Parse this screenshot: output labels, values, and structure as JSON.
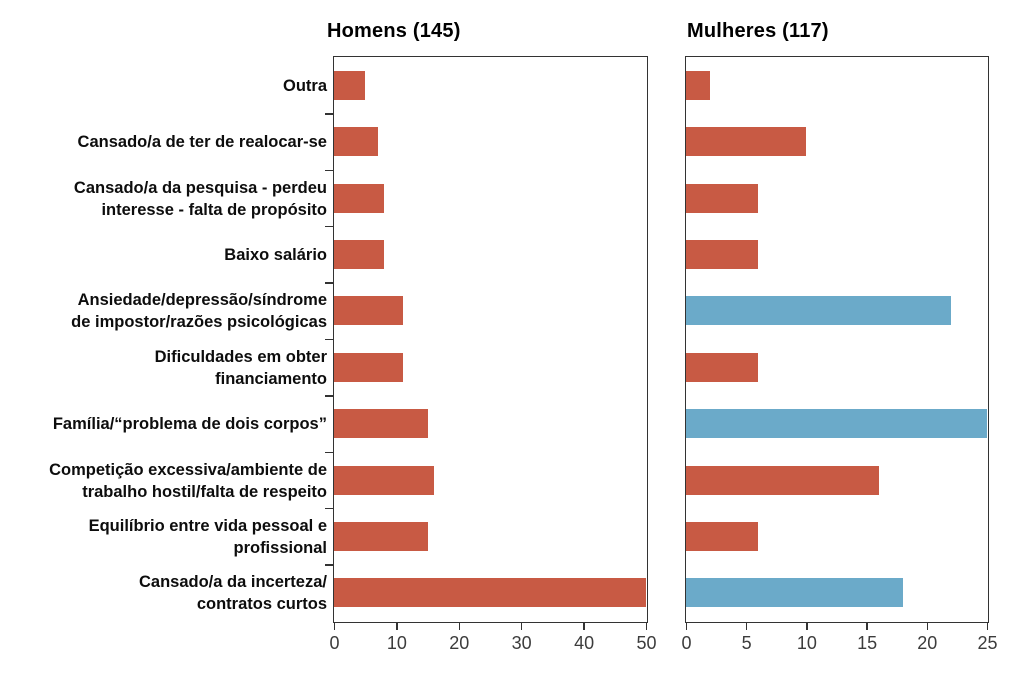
{
  "chart_data": {
    "type": "bar",
    "orientation": "horizontal",
    "grid": false,
    "legend": false,
    "palette": {
      "red": "#C85A44",
      "blue": "#6BAAC9",
      "axis": "#333333",
      "tick_text": "#3c3c3c"
    },
    "categories": [
      [
        "Outra"
      ],
      [
        "Cansado/a de ter de realocar-se"
      ],
      [
        "Cansado/a da pesquisa - perdeu",
        "interesse - falta de propósito"
      ],
      [
        "Baixo salário"
      ],
      [
        "Ansiedade/depressão/síndrome",
        "de impostor/razões psicológicas"
      ],
      [
        "Dificuldades em obter",
        "financiamento"
      ],
      [
        "Família/“problema de dois corpos”"
      ],
      [
        "Competição excessiva/ambiente de",
        "trabalho hostil/falta de respeito"
      ],
      [
        "Equilíbrio entre vida pessoal e",
        "profissional"
      ],
      [
        "Cansado/a da incerteza/",
        "contratos curtos"
      ]
    ],
    "series": [
      {
        "name": "Homens (145)",
        "values": [
          5,
          7,
          8,
          8,
          11,
          11,
          15,
          16,
          15,
          50
        ],
        "bar_colors": [
          "#C85A44",
          "#C85A44",
          "#C85A44",
          "#C85A44",
          "#C85A44",
          "#C85A44",
          "#C85A44",
          "#C85A44",
          "#C85A44",
          "#C85A44"
        ],
        "xlim": [
          0,
          50
        ],
        "xticks": [
          0,
          10,
          20,
          30,
          40,
          50
        ]
      },
      {
        "name": "Mulheres (117)",
        "values": [
          2,
          10,
          6,
          6,
          22,
          6,
          25,
          16,
          6,
          18
        ],
        "bar_colors": [
          "#C85A44",
          "#C85A44",
          "#C85A44",
          "#C85A44",
          "#6BAAC9",
          "#C85A44",
          "#6BAAC9",
          "#C85A44",
          "#C85A44",
          "#6BAAC9"
        ],
        "xlim": [
          0,
          25
        ],
        "xticks": [
          0,
          5,
          10,
          15,
          20,
          25
        ]
      }
    ]
  }
}
